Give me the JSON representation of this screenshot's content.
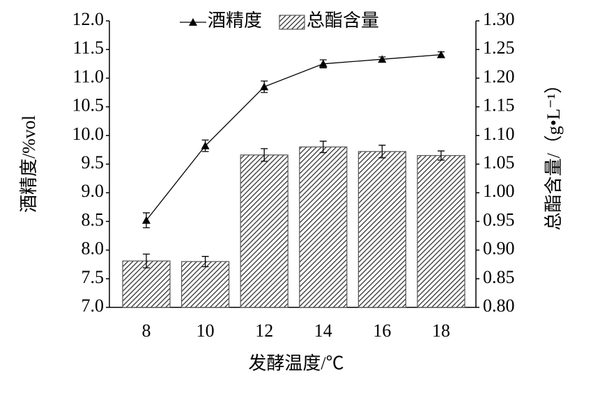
{
  "chart_data": {
    "type": "bar",
    "x_label": "发酵温度/℃",
    "y_label": "酒精度/%vol",
    "y2_label": "总酯含量/（g•L⁻¹）",
    "categories": [
      "8",
      "10",
      "12",
      "14",
      "16",
      "18"
    ],
    "ylim": [
      7,
      12
    ],
    "yticks": [
      {
        "value": 7,
        "label": "7.0"
      },
      7.5,
      {
        "value": 8,
        "label": "8.0"
      },
      8.5,
      {
        "value": 9,
        "label": "9.0"
      },
      9.5,
      {
        "value": 10,
        "label": "10.0"
      },
      10.5,
      {
        "value": 11,
        "label": "11.0"
      },
      11.5,
      {
        "value": 12,
        "label": "12.0"
      }
    ],
    "y2lim": [
      0.8,
      1.3
    ],
    "y2ticks": [
      {
        "value": 0.8,
        "label": "0.80"
      },
      0.85,
      {
        "value": 0.9,
        "label": "0.90"
      },
      0.95,
      {
        "value": 1.0,
        "label": "1.00"
      },
      1.05,
      {
        "value": 1.1,
        "label": "1.10"
      },
      1.15,
      {
        "value": 1.2,
        "label": "1.20"
      },
      1.25,
      {
        "value": 1.3,
        "label": "1.30"
      }
    ],
    "legend": "top",
    "series": [
      {
        "name": "酒精度",
        "type": "line",
        "color": "#000000",
        "values": [
          8.52,
          9.82,
          10.85,
          11.25,
          11.33,
          11.41
        ],
        "errors": [
          0.13,
          0.1,
          0.1,
          0.07,
          0.04,
          0.05
        ]
      },
      {
        "name": "总酯含量",
        "type": "bar",
        "axis": "y2",
        "color": "#555555",
        "values": [
          0.881,
          0.88,
          1.066,
          1.08,
          1.072,
          1.065
        ],
        "errors": [
          0.012,
          0.009,
          0.011,
          0.01,
          0.011,
          0.008
        ]
      }
    ]
  }
}
